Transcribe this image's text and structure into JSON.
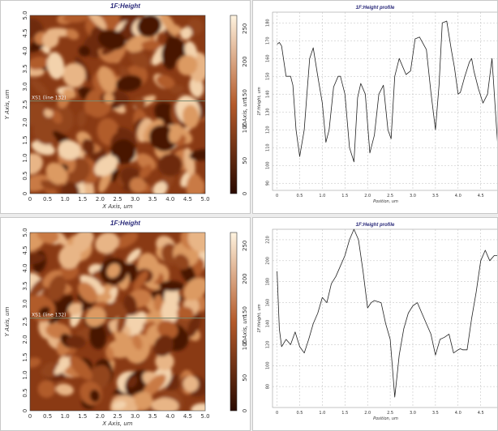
{
  "colors": {
    "afm_dark": "#2a0a00",
    "afm_mid": "#b45a2a",
    "afm_light": "#fff4e0",
    "line": "#222222",
    "scan_line": "#7a8a70"
  },
  "panels": [
    {
      "image": {
        "title": "1F:Height",
        "xlabel": "X Axis, um",
        "ylabel": "Y Axis, um",
        "x_ticks": [
          "0",
          "0.5",
          "1.0",
          "1.5",
          "2.0",
          "2.5",
          "3.0",
          "3.5",
          "4.0",
          "4.5",
          "5.0"
        ],
        "y_ticks": [
          "0",
          "0.5",
          "1.0",
          "1.5",
          "2.0",
          "2.5",
          "3.0",
          "3.5",
          "4.0",
          "4.5",
          "5.0"
        ],
        "scan_line_label": "XS1 (line 132)",
        "scan_line_y": 2.6
      },
      "colorbar": {
        "label": "Z Axis, um",
        "ticks": [
          "0",
          "50",
          "100",
          "150",
          "200",
          "250"
        ]
      },
      "profile": {
        "title": "1F:Height profile",
        "xlabel": "Position, um",
        "ylabel": "1F:Height, um",
        "x_ticks": [
          "0",
          "0.5",
          "1.0",
          "1.5",
          "2.0",
          "2.5",
          "3.0",
          "3.5",
          "4.0",
          "4.5"
        ],
        "y_ticks": [
          "90",
          "100",
          "110",
          "120",
          "130",
          "140",
          "150",
          "160",
          "170",
          "180"
        ]
      }
    },
    {
      "image": {
        "title": "1F:Height",
        "xlabel": "X Axis, um",
        "ylabel": "Y Axis, um",
        "x_ticks": [
          "0",
          "0.5",
          "1.0",
          "1.5",
          "2.0",
          "2.5",
          "3.0",
          "3.5",
          "4.0",
          "4.5",
          "5.0"
        ],
        "y_ticks": [
          "0",
          "0.5",
          "1.0",
          "1.5",
          "2.0",
          "2.5",
          "3.0",
          "3.5",
          "4.0",
          "4.5",
          "5.0"
        ],
        "scan_line_label": "XS1 (line 132)",
        "scan_line_y": 2.6
      },
      "colorbar": {
        "label": "Z Axis, um",
        "ticks": [
          "0",
          "50",
          "100",
          "150",
          "200",
          "250"
        ]
      },
      "profile": {
        "title": "1F:Height profile",
        "xlabel": "Position, um",
        "ylabel": "1F:Height, um",
        "x_ticks": [
          "0",
          "0.5",
          "1.0",
          "1.5",
          "2.0",
          "2.5",
          "3.0",
          "3.5",
          "4.0",
          "4.5"
        ],
        "y_ticks": [
          "80",
          "100",
          "120",
          "140",
          "160",
          "180",
          "200",
          "220"
        ]
      }
    }
  ],
  "chart_data": [
    {
      "type": "line",
      "title": "1F:Height profile",
      "xlabel": "Position, um",
      "ylabel": "1F:Height, um",
      "xlim": [
        -0.1,
        4.9
      ],
      "ylim": [
        86,
        186
      ],
      "grid": true,
      "series": [
        {
          "x": [
            0,
            0.05,
            0.1,
            0.2,
            0.3,
            0.35,
            0.42,
            0.5,
            0.6,
            0.66,
            0.72,
            0.8,
            0.9,
            1.0,
            1.08,
            1.15,
            1.25,
            1.35,
            1.4,
            1.5,
            1.6,
            1.7,
            1.78,
            1.85,
            1.95,
            2.05,
            2.15,
            2.25,
            2.35,
            2.45,
            2.52,
            2.6,
            2.7,
            2.85,
            2.95,
            3.05,
            3.15,
            3.3,
            3.4,
            3.5,
            3.58,
            3.65,
            3.75,
            3.85,
            3.92,
            4.0,
            4.05,
            4.15,
            4.25,
            4.3,
            4.35,
            4.45,
            4.55,
            4.65,
            4.75,
            4.85,
            4.9
          ],
          "y": [
            168,
            169,
            167,
            150,
            150,
            145,
            120,
            105,
            120,
            140,
            160,
            166,
            150,
            135,
            113,
            120,
            144,
            150,
            150,
            140,
            110,
            102,
            138,
            146,
            140,
            107,
            117,
            140,
            145,
            120,
            115,
            150,
            160,
            151,
            153,
            171,
            172,
            165,
            141,
            120,
            145,
            180,
            181,
            165,
            155,
            140,
            141,
            150,
            158,
            160,
            153,
            143,
            135,
            140,
            160,
            121,
            103
          ]
        }
      ]
    },
    {
      "type": "line",
      "title": "1F:Height profile",
      "xlabel": "Position, um",
      "ylabel": "1F:Height, um",
      "xlim": [
        -0.1,
        4.9
      ],
      "ylim": [
        60,
        230
      ],
      "grid": true,
      "series": [
        {
          "x": [
            0,
            0.05,
            0.1,
            0.2,
            0.3,
            0.4,
            0.5,
            0.6,
            0.7,
            0.8,
            0.9,
            1.0,
            1.1,
            1.2,
            1.3,
            1.4,
            1.5,
            1.6,
            1.7,
            1.8,
            1.9,
            2.0,
            2.08,
            2.15,
            2.3,
            2.4,
            2.5,
            2.6,
            2.65,
            2.7,
            2.8,
            2.9,
            3.0,
            3.1,
            3.2,
            3.3,
            3.4,
            3.5,
            3.6,
            3.7,
            3.8,
            3.9,
            4.0,
            4.05,
            4.1,
            4.2,
            4.3,
            4.4,
            4.5,
            4.6,
            4.7,
            4.8,
            4.9
          ],
          "y": [
            190,
            135,
            118,
            125,
            120,
            132,
            118,
            112,
            125,
            140,
            150,
            165,
            160,
            178,
            185,
            195,
            205,
            220,
            230,
            220,
            190,
            155,
            160,
            162,
            160,
            140,
            125,
            70,
            90,
            110,
            135,
            150,
            157,
            160,
            150,
            140,
            130,
            110,
            125,
            127,
            130,
            112,
            115,
            116,
            115,
            115,
            145,
            170,
            200,
            210,
            200,
            205,
            205
          ]
        }
      ]
    }
  ]
}
